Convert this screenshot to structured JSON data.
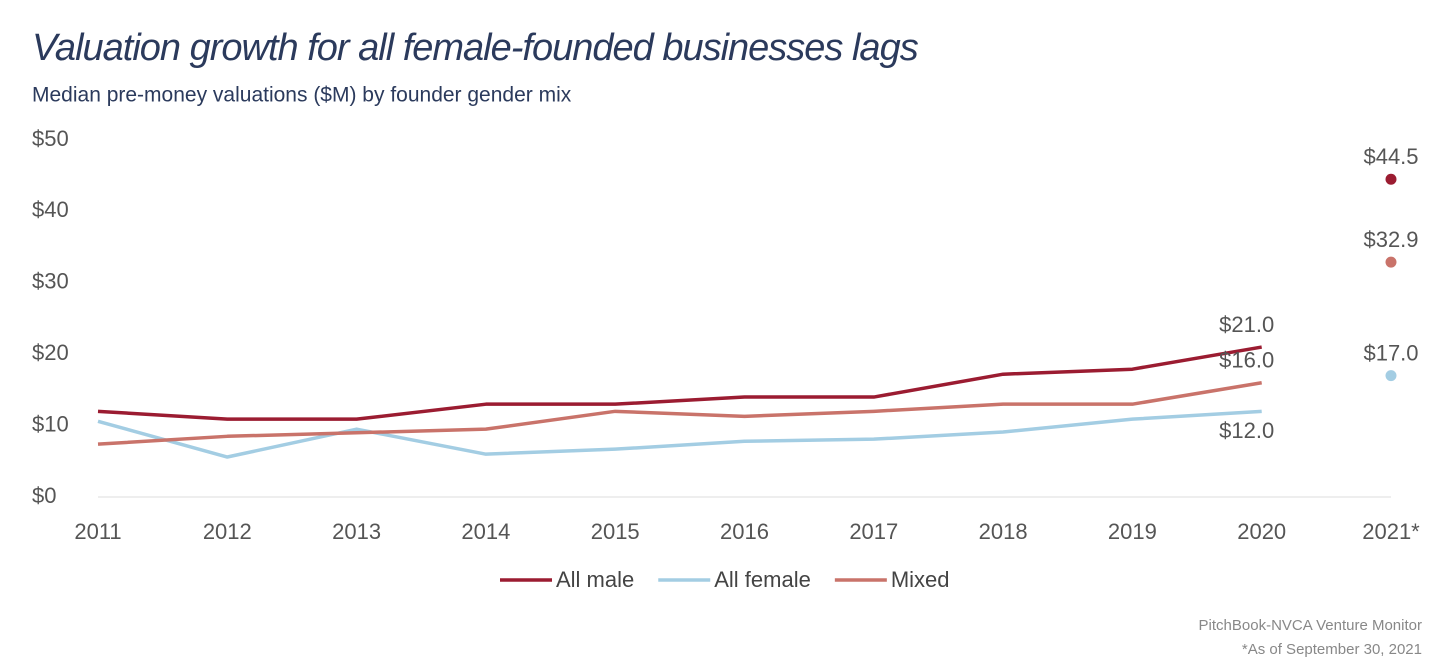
{
  "chart_data": {
    "type": "line",
    "title": "Valuation growth for all female-founded businesses lags",
    "subtitle": "Median pre-money valuations ($M) by founder gender mix",
    "categories": [
      "2011",
      "2012",
      "2013",
      "2014",
      "2015",
      "2016",
      "2017",
      "2018",
      "2019",
      "2020",
      "2021*"
    ],
    "last_point_separate": true,
    "series": [
      {
        "name": "All male",
        "color": "#9b1c31",
        "values": [
          12.0,
          10.9,
          10.9,
          13.0,
          13.0,
          14.0,
          14.0,
          17.2,
          17.9,
          21.0,
          44.5
        ],
        "value_labels": [
          null,
          null,
          null,
          null,
          null,
          null,
          null,
          null,
          null,
          "$21.0",
          "$44.5"
        ]
      },
      {
        "name": "All female",
        "color": "#a3cde3",
        "values": [
          10.6,
          5.6,
          9.5,
          6.0,
          6.7,
          7.8,
          8.1,
          9.1,
          10.9,
          12.0,
          17.0
        ],
        "value_labels": [
          null,
          null,
          null,
          null,
          null,
          null,
          null,
          null,
          null,
          "$12.0",
          "$17.0"
        ]
      },
      {
        "name": "Mixed",
        "color": "#c9736a",
        "values": [
          7.4,
          8.5,
          9.0,
          9.5,
          12.0,
          11.3,
          12.0,
          13.0,
          13.0,
          16.0,
          32.9
        ],
        "value_labels": [
          null,
          null,
          null,
          null,
          null,
          null,
          null,
          null,
          null,
          "$16.0",
          "$32.9"
        ]
      }
    ],
    "ylim": [
      0,
      50
    ],
    "yticks": [
      {
        "value": 0,
        "label": "$0"
      },
      {
        "value": 10,
        "label": "$10"
      },
      {
        "value": 20,
        "label": "$20"
      },
      {
        "value": 30,
        "label": "$30"
      },
      {
        "value": 40,
        "label": "$40"
      },
      {
        "value": 50,
        "label": "$50"
      }
    ],
    "legend": "bottom",
    "source": [
      "PitchBook-NVCA Venture Monitor",
      "*As of September 30, 2021"
    ]
  }
}
